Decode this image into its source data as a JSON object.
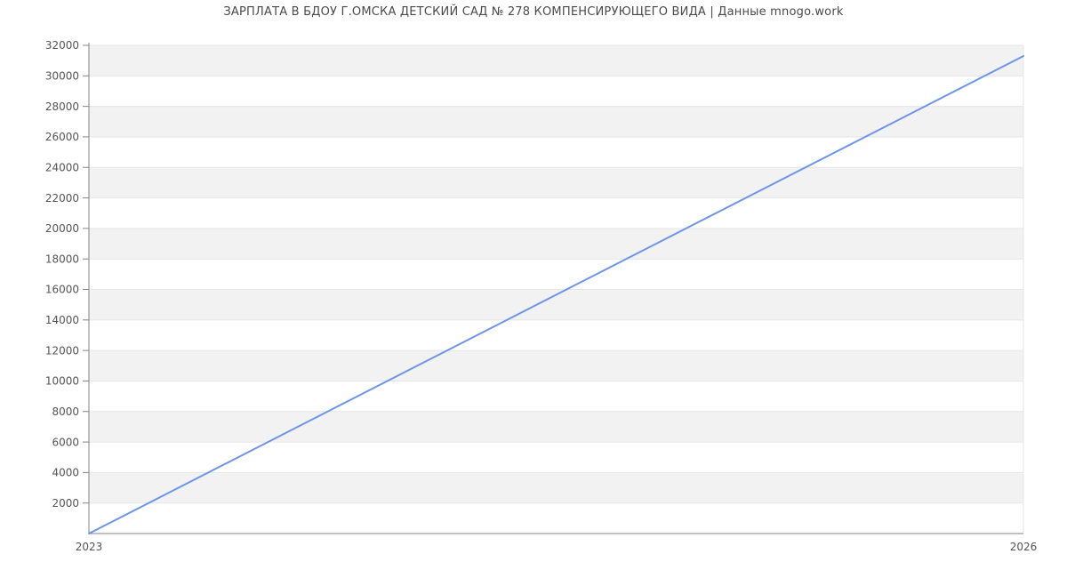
{
  "chart_data": {
    "type": "line",
    "title": "ЗАРПЛАТА В БДОУ Г.ОМСКА ДЕТСКИЙ САД № 278 КОМПЕНСИРУЮЩЕГО ВИДА | Данные mnogo.work",
    "x": [
      2023,
      2026
    ],
    "y": [
      0,
      31300
    ],
    "xlim": [
      2023,
      2026
    ],
    "ylim": [
      0,
      32000
    ],
    "xticks": [
      {
        "value": 2023,
        "label": "2023"
      },
      {
        "value": 2026,
        "label": "2026"
      }
    ],
    "yticks": [
      2000,
      4000,
      6000,
      8000,
      10000,
      12000,
      14000,
      16000,
      18000,
      20000,
      22000,
      24000,
      26000,
      28000,
      30000,
      32000
    ],
    "ytick_step": 2000,
    "grid": "horizontal",
    "alternating_bands": true,
    "legend": "none"
  },
  "colors": {
    "line": "#6e96e6",
    "band": "#f2f2f2",
    "gridline": "#e6e6e6",
    "axis": "#848484",
    "tick_text": "#555555",
    "title_text": "#4a4a4a",
    "background": "#ffffff"
  }
}
